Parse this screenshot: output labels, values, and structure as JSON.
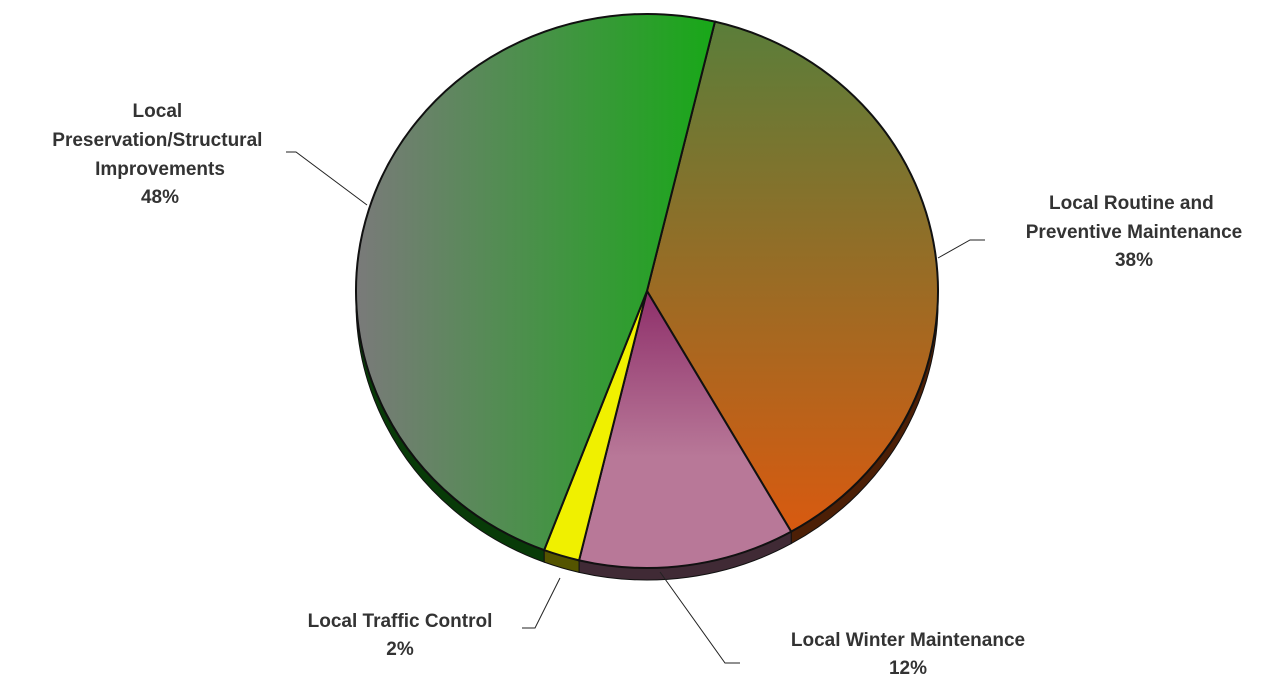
{
  "chart_data": {
    "type": "pie",
    "categories": [
      "Local Routine and Preventive Maintenance",
      "Local Winter Maintenance",
      "Local Traffic Control",
      "Local Preservation/Structural Improvements"
    ],
    "values": [
      38,
      12,
      2,
      48
    ],
    "value_labels": [
      "38%",
      "12%",
      "2%",
      "48%"
    ],
    "colors": [
      "#d85a10",
      "#b87898",
      "#f0f000",
      "#18a818"
    ]
  }
}
